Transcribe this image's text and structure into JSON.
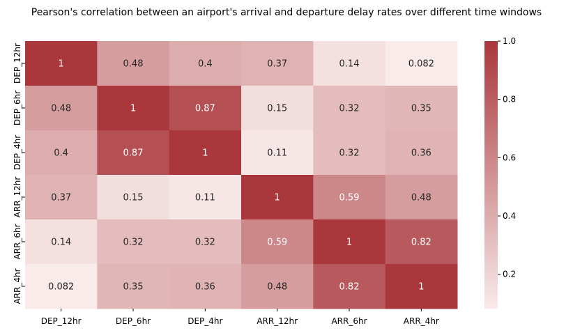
{
  "chart_data": {
    "type": "heatmap",
    "title": "Pearson's correlation between an airport's arrival and departure delay rates over different time windows",
    "x_labels": [
      "DEP_12hr",
      "DEP_6hr",
      "DEP_4hr",
      "ARR_12hr",
      "ARR_6hr",
      "ARR_4hr"
    ],
    "y_labels": [
      "DEP_12hr",
      "DEP_6hr",
      "DEP_4hr",
      "ARR_12hr",
      "ARR_6hr",
      "ARR_4hr"
    ],
    "values": [
      [
        1,
        0.48,
        0.4,
        0.37,
        0.14,
        0.082
      ],
      [
        0.48,
        1,
        0.87,
        0.15,
        0.32,
        0.35
      ],
      [
        0.4,
        0.87,
        1,
        0.11,
        0.32,
        0.36
      ],
      [
        0.37,
        0.15,
        0.11,
        1,
        0.59,
        0.48
      ],
      [
        0.14,
        0.32,
        0.32,
        0.59,
        1,
        0.82
      ],
      [
        0.082,
        0.35,
        0.36,
        0.48,
        0.82,
        1
      ]
    ],
    "value_labels": [
      [
        "1",
        "0.48",
        "0.4",
        "0.37",
        "0.14",
        "0.082"
      ],
      [
        "0.48",
        "1",
        "0.87",
        "0.15",
        "0.32",
        "0.35"
      ],
      [
        "0.4",
        "0.87",
        "1",
        "0.11",
        "0.32",
        "0.36"
      ],
      [
        "0.37",
        "0.15",
        "0.11",
        "1",
        "0.59",
        "0.48"
      ],
      [
        "0.14",
        "0.32",
        "0.32",
        "0.59",
        "1",
        "0.82"
      ],
      [
        "0.082",
        "0.35",
        "0.36",
        "0.48",
        "0.82",
        "1"
      ]
    ],
    "colorbar": {
      "range": [
        0.082,
        1.0
      ],
      "ticks": [
        0.2,
        0.4,
        0.6,
        0.8,
        1.0
      ],
      "tick_labels": [
        "0.2",
        "0.4",
        "0.6",
        "0.8",
        "1.0"
      ],
      "color_low": "#f8ebea",
      "color_high": "#a9373b"
    },
    "text_color_dark": "#262626",
    "text_color_light": "#ffffff"
  }
}
